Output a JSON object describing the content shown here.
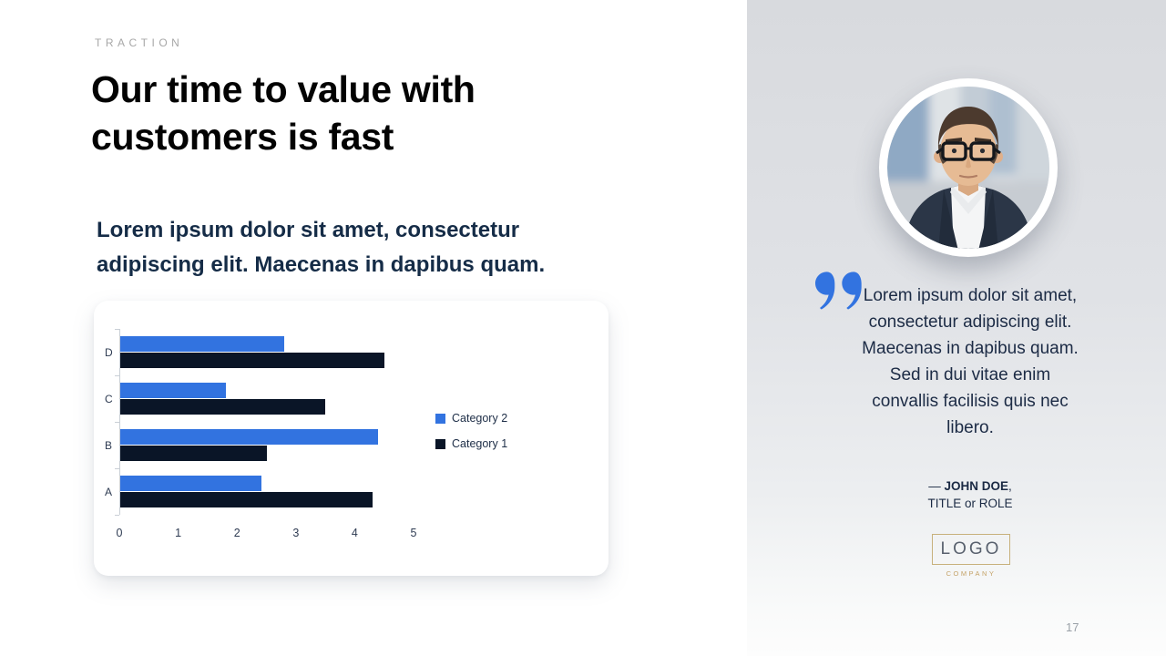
{
  "slide": {
    "eyebrow": "TRACTION",
    "title_line1": "Our time to value with",
    "title_line2": "customers is fast",
    "subtitle": "Lorem ipsum dolor sit amet, consectetur adipiscing elit. Maecenas in dapibus quam.",
    "page_number": "17"
  },
  "chart_data": {
    "type": "bar",
    "orientation": "horizontal",
    "categories": [
      "D",
      "C",
      "B",
      "A"
    ],
    "series": [
      {
        "name": "Category 2",
        "color": "#3273e0",
        "values": [
          2.8,
          1.8,
          4.4,
          2.4
        ]
      },
      {
        "name": "Category 1",
        "color": "#0a1527",
        "values": [
          4.5,
          3.5,
          2.5,
          4.3
        ]
      }
    ],
    "x_ticks": [
      0,
      1,
      2,
      3,
      4,
      5
    ],
    "xlim": [
      0,
      5
    ],
    "grid": false,
    "legend_position": "right"
  },
  "quote": {
    "text": "Lorem ipsum dolor sit amet, consectetur adipiscing elit. Maecenas in dapibus quam. Sed in dui vitae enim convallis facilisis quis nec libero.",
    "attribution_prefix": "— ",
    "attribution_name": "JOHN DOE",
    "attribution_comma": ",",
    "attribution_role": "TITLE or ROLE"
  },
  "logo": {
    "text": "LOGO",
    "subtext": "COMPANY"
  },
  "colors": {
    "accent": "#3273e0",
    "series_dark": "#0a1527",
    "gold": "#c7b17c",
    "text_navy": "#1b2a44"
  }
}
